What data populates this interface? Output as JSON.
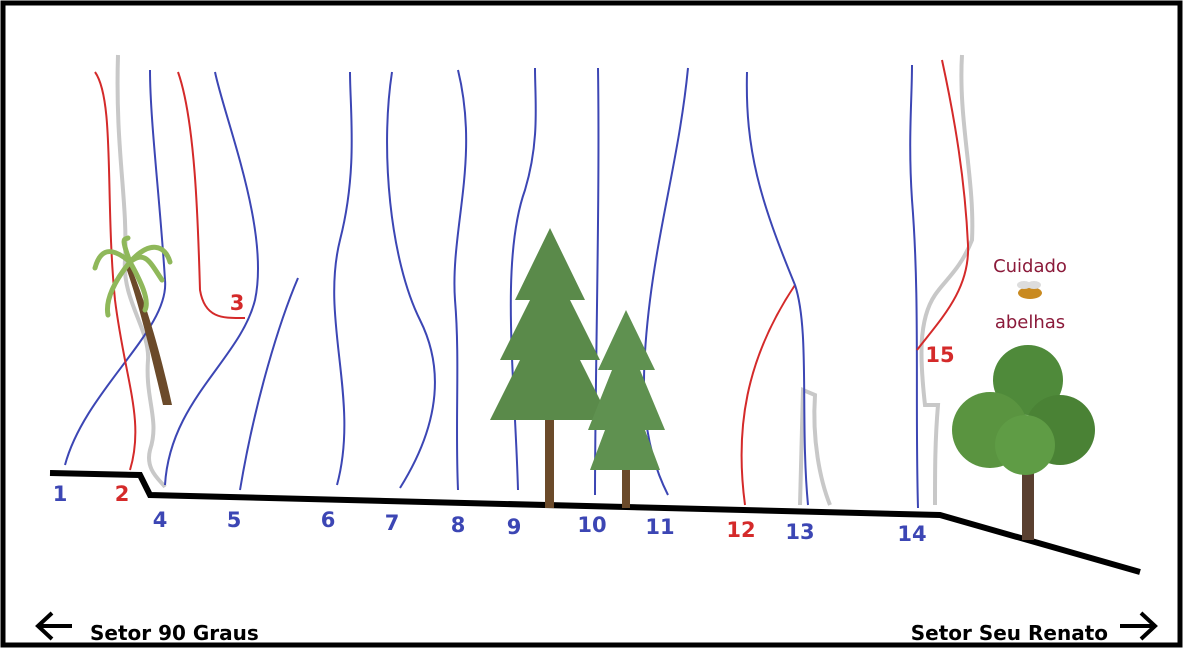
{
  "routes": [
    {
      "label": "1",
      "color": "#3c46b4"
    },
    {
      "label": "2",
      "color": "#d42a2a"
    },
    {
      "label": "3",
      "color": "#d42a2a"
    },
    {
      "label": "4",
      "color": "#3c46b4"
    },
    {
      "label": "5",
      "color": "#3c46b4"
    },
    {
      "label": "6",
      "color": "#3c46b4"
    },
    {
      "label": "7",
      "color": "#3c46b4"
    },
    {
      "label": "8",
      "color": "#3c46b4"
    },
    {
      "label": "9",
      "color": "#3c46b4"
    },
    {
      "label": "10",
      "color": "#3c46b4"
    },
    {
      "label": "11",
      "color": "#3c46b4"
    },
    {
      "label": "12",
      "color": "#d42a2a"
    },
    {
      "label": "13",
      "color": "#3c46b4"
    },
    {
      "label": "14",
      "color": "#3c46b4"
    },
    {
      "label": "15",
      "color": "#d42a2a"
    }
  ],
  "warning": {
    "line1": "Cuidado",
    "line2": "abelhas",
    "color": "#8b1a3a"
  },
  "footer": {
    "left": "Setor 90 Graus",
    "right": "Setor Seu Renato"
  }
}
